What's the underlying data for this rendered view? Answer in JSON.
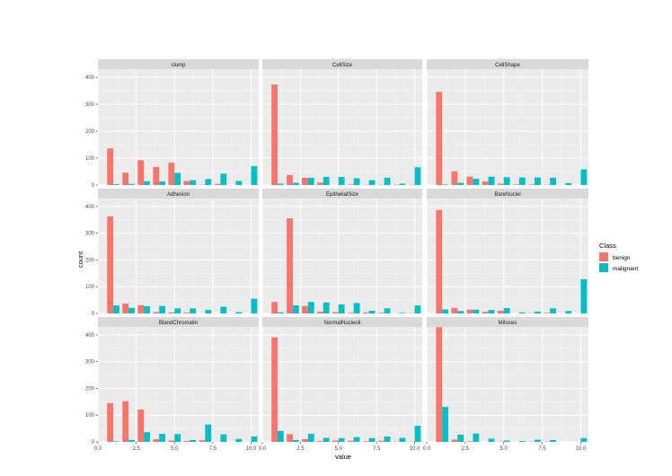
{
  "chart_data": {
    "type": "bar",
    "subtype": "faceted-dodged-histogram",
    "xlabel": "value",
    "ylabel": "count",
    "xlim": [
      0,
      10.5
    ],
    "ylim": [
      0,
      430
    ],
    "x_ticks": [
      0.0,
      2.5,
      5.0,
      7.5,
      10.0
    ],
    "x_tick_labels": [
      "0.0",
      "2.5",
      "5.0",
      "7.5",
      "10.0"
    ],
    "y_ticks": [
      0,
      100,
      200,
      300,
      400
    ],
    "y_tick_labels": [
      "0",
      "100",
      "200",
      "300",
      "400"
    ],
    "grid": true,
    "legend": {
      "title": "Class",
      "placement": "right",
      "entries": [
        {
          "label": "benign",
          "color": "#F8766D"
        },
        {
          "label": "malignant",
          "color": "#00BFC4"
        }
      ]
    },
    "colors": {
      "benign": "#F8766D",
      "malignant": "#00BFC4",
      "panel_bg": "#EBEBEB",
      "strip_bg": "#D9D9D9"
    },
    "x": [
      1,
      2,
      3,
      4,
      5,
      6,
      7,
      8,
      9,
      10
    ],
    "facets": [
      {
        "title": "clump",
        "benign": [
          136,
          46,
          92,
          67,
          83,
          15,
          1,
          4,
          0,
          0
        ],
        "malignant": [
          3,
          4,
          14,
          13,
          45,
          18,
          22,
          42,
          15,
          70
        ]
      },
      {
        "title": "CellSize",
        "benign": [
          373,
          37,
          27,
          9,
          0,
          2,
          1,
          1,
          1,
          1
        ],
        "malignant": [
          5,
          8,
          27,
          30,
          30,
          25,
          18,
          27,
          5,
          66
        ]
      },
      {
        "title": "CellShape",
        "benign": [
          346,
          51,
          31,
          13,
          5,
          2,
          2,
          1,
          0,
          0
        ],
        "malignant": [
          2,
          8,
          23,
          31,
          29,
          28,
          28,
          27,
          7,
          58
        ]
      },
      {
        "title": "Adhesion",
        "benign": [
          363,
          37,
          31,
          5,
          4,
          3,
          0,
          0,
          0,
          0
        ],
        "malignant": [
          30,
          21,
          27,
          28,
          19,
          19,
          13,
          25,
          5,
          55
        ]
      },
      {
        "title": "EpithelialSize",
        "benign": [
          43,
          356,
          28,
          7,
          5,
          2,
          3,
          2,
          0,
          1
        ],
        "malignant": [
          4,
          30,
          43,
          41,
          34,
          39,
          10,
          19,
          2,
          30
        ]
      },
      {
        "title": "BareNuclei",
        "benign": [
          387,
          21,
          14,
          6,
          10,
          0,
          1,
          2,
          0,
          0
        ],
        "malignant": [
          15,
          9,
          14,
          13,
          20,
          4,
          7,
          19,
          9,
          128
        ]
      },
      {
        "title": "BlandChromatin",
        "benign": [
          145,
          152,
          121,
          10,
          5,
          3,
          6,
          0,
          0,
          0
        ],
        "malignant": [
          2,
          7,
          36,
          30,
          29,
          7,
          65,
          28,
          11,
          20
        ]
      },
      {
        "title": "NormalNucleoli",
        "benign": [
          391,
          29,
          10,
          3,
          5,
          4,
          2,
          4,
          1,
          1
        ],
        "malignant": [
          41,
          7,
          30,
          15,
          14,
          18,
          14,
          20,
          15,
          60
        ]
      },
      {
        "title": "Mitoses",
        "benign": [
          429,
          8,
          2,
          0,
          1,
          0,
          1,
          1,
          0,
          0
        ],
        "malignant": [
          131,
          27,
          31,
          12,
          5,
          3,
          8,
          7,
          0,
          14
        ]
      }
    ]
  }
}
